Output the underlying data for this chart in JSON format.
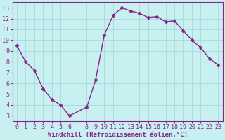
{
  "x": [
    0,
    1,
    2,
    3,
    4,
    5,
    6,
    8,
    9,
    10,
    11,
    12,
    13,
    14,
    15,
    16,
    17,
    18,
    19,
    20,
    21,
    22,
    23
  ],
  "y": [
    9.5,
    8.0,
    7.2,
    5.5,
    4.5,
    4.0,
    3.0,
    3.8,
    6.3,
    10.5,
    12.3,
    13.0,
    12.7,
    12.5,
    12.1,
    12.2,
    11.7,
    11.8,
    10.9,
    10.0,
    9.3,
    8.3,
    7.7
  ],
  "line_color": "#882288",
  "marker": "D",
  "marker_size": 2.5,
  "bg_color": "#c8f0f0",
  "grid_color": "#aadddd",
  "xlabel": "Windchill (Refroidissement éolien,°C)",
  "xlabel_fontsize": 6.5,
  "ylim": [
    2.5,
    13.5
  ],
  "xlim": [
    -0.5,
    23.5
  ],
  "xticks": [
    0,
    1,
    2,
    3,
    4,
    5,
    6,
    8,
    9,
    10,
    11,
    12,
    13,
    14,
    15,
    16,
    17,
    18,
    19,
    20,
    21,
    22,
    23
  ],
  "yticks": [
    3,
    4,
    5,
    6,
    7,
    8,
    9,
    10,
    11,
    12,
    13
  ],
  "tick_fontsize": 6,
  "tick_color": "#882288",
  "spine_color": "#882288",
  "line_width": 1.0
}
